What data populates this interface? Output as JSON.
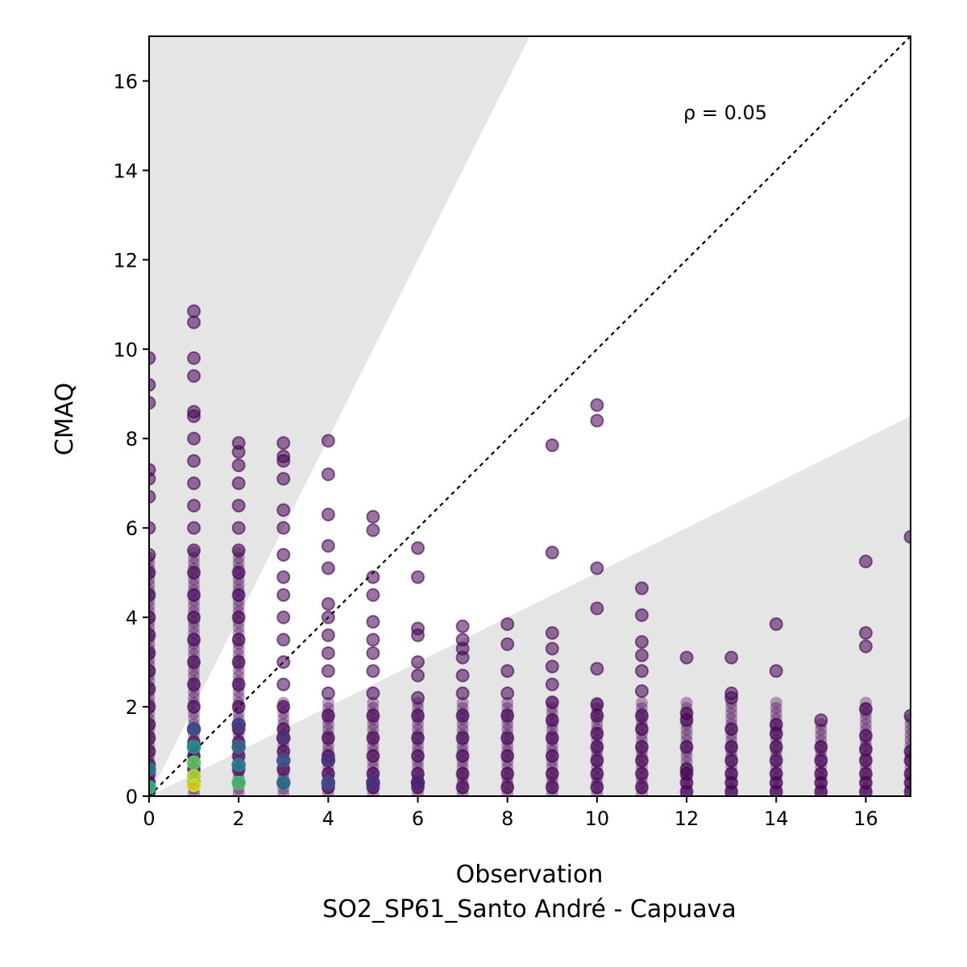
{
  "chart_data": {
    "type": "scatter",
    "xlabel": "Observation",
    "subtitle": "SO2_SP61_Santo André - Capuava",
    "ylabel": "CMAQ",
    "annotation": "ρ = 0.05",
    "xlim": [
      0,
      17
    ],
    "ylim": [
      0,
      17
    ],
    "x_ticks": [
      0,
      2,
      4,
      6,
      8,
      10,
      12,
      14,
      16
    ],
    "y_ticks": [
      0,
      2,
      4,
      6,
      8,
      10,
      12,
      14,
      16
    ],
    "grid": false,
    "identity_line": true,
    "shaded_regions": [
      {
        "description": "factor-of-2 bounds",
        "upper_slope": 2,
        "lower_slope": 0.5,
        "color": "#e5e5e5"
      }
    ],
    "colormap": "viridis",
    "columns": [
      {
        "x": 0,
        "y": [
          0.1,
          0.3,
          0.5,
          0.7,
          1.0,
          1.3,
          1.6,
          2.0,
          2.4,
          2.8,
          3.2,
          3.6,
          4.0,
          4.5,
          5.0,
          5.4,
          6.0,
          6.7,
          7.1,
          7.3,
          8.8,
          9.2,
          9.8
        ]
      },
      {
        "x": 1,
        "y": [
          0.3,
          0.6,
          0.9,
          1.2,
          1.5,
          2.0,
          2.5,
          3.0,
          3.5,
          4.0,
          4.5,
          5.0,
          5.5,
          6.0,
          6.5,
          7.0,
          7.5,
          8.0,
          8.5,
          8.6,
          9.4,
          9.8,
          10.6,
          10.85
        ]
      },
      {
        "x": 2,
        "y": [
          0.3,
          0.6,
          0.9,
          1.2,
          1.5,
          2.0,
          2.5,
          3.0,
          3.5,
          4.0,
          4.5,
          5.0,
          5.5,
          6.0,
          6.5,
          7.0,
          7.4,
          7.7,
          7.9
        ]
      },
      {
        "x": 3,
        "y": [
          0.3,
          0.6,
          1.0,
          1.5,
          2.0,
          2.5,
          3.0,
          3.5,
          4.0,
          4.5,
          4.9,
          5.4,
          6.0,
          6.4,
          7.1,
          7.5,
          7.6,
          7.9
        ]
      },
      {
        "x": 4,
        "y": [
          0.2,
          0.5,
          0.9,
          1.3,
          1.8,
          2.3,
          2.8,
          3.2,
          3.6,
          4.0,
          4.3,
          5.1,
          5.6,
          6.3,
          7.2,
          7.95
        ]
      },
      {
        "x": 5,
        "y": [
          0.2,
          0.5,
          0.9,
          1.3,
          1.8,
          2.3,
          2.8,
          3.2,
          3.5,
          3.9,
          4.5,
          4.9,
          5.95,
          6.25
        ]
      },
      {
        "x": 6,
        "y": [
          0.2,
          0.5,
          0.9,
          1.3,
          1.8,
          2.2,
          2.7,
          3.0,
          3.6,
          3.75,
          4.9,
          5.55
        ]
      },
      {
        "x": 7,
        "y": [
          0.2,
          0.5,
          0.9,
          1.3,
          1.8,
          2.3,
          2.7,
          3.1,
          3.3,
          3.5,
          3.8
        ]
      },
      {
        "x": 8,
        "y": [
          0.2,
          0.5,
          0.9,
          1.3,
          1.8,
          2.3,
          2.8,
          3.4,
          3.85
        ]
      },
      {
        "x": 9,
        "y": [
          0.2,
          0.5,
          0.9,
          1.3,
          1.7,
          2.1,
          2.5,
          2.9,
          3.3,
          3.65,
          5.45,
          7.85
        ]
      },
      {
        "x": 10,
        "y": [
          0.2,
          0.5,
          0.8,
          1.1,
          1.4,
          1.8,
          2.05,
          2.85,
          4.2,
          5.1,
          8.4,
          8.75
        ]
      },
      {
        "x": 11,
        "y": [
          0.2,
          0.5,
          0.8,
          1.1,
          1.5,
          1.8,
          2.35,
          2.8,
          3.15,
          3.45,
          4.05,
          4.65
        ]
      },
      {
        "x": 12,
        "y": [
          0.1,
          0.3,
          0.5,
          0.6,
          1.1,
          1.7,
          1.85,
          3.1
        ]
      },
      {
        "x": 13,
        "y": [
          0.1,
          0.3,
          0.5,
          0.8,
          1.1,
          1.5,
          2.2,
          2.3,
          3.1
        ]
      },
      {
        "x": 14,
        "y": [
          0.1,
          0.3,
          0.5,
          0.8,
          1.1,
          1.4,
          1.6,
          2.8,
          3.85
        ]
      },
      {
        "x": 15,
        "y": [
          0.1,
          0.3,
          0.5,
          0.8,
          1.1,
          1.7
        ]
      },
      {
        "x": 16,
        "y": [
          0.1,
          0.3,
          0.5,
          0.8,
          1.05,
          1.35,
          1.95,
          3.35,
          3.65,
          5.25
        ]
      },
      {
        "x": 17,
        "y": [
          0.1,
          0.3,
          0.5,
          0.8,
          1.0,
          1.8,
          5.8
        ]
      }
    ],
    "density_colors": [
      {
        "x": 0,
        "y": 0.2,
        "color": "#35b779"
      },
      {
        "x": 0,
        "y": 0.6,
        "color": "#2a788e"
      },
      {
        "x": 1,
        "y": 0.25,
        "color": "#d8e219"
      },
      {
        "x": 1,
        "y": 0.45,
        "color": "#b5de2b"
      },
      {
        "x": 1,
        "y": 0.75,
        "color": "#5ec962"
      },
      {
        "x": 1,
        "y": 1.1,
        "color": "#21918c"
      },
      {
        "x": 1,
        "y": 1.5,
        "color": "#3b528b"
      },
      {
        "x": 2,
        "y": 0.3,
        "color": "#4ac16d"
      },
      {
        "x": 2,
        "y": 0.7,
        "color": "#26828e"
      },
      {
        "x": 2,
        "y": 1.1,
        "color": "#31688e"
      },
      {
        "x": 2,
        "y": 1.6,
        "color": "#443983"
      },
      {
        "x": 3,
        "y": 0.3,
        "color": "#2c728e"
      },
      {
        "x": 3,
        "y": 0.8,
        "color": "#3b528b"
      },
      {
        "x": 3,
        "y": 1.3,
        "color": "#472d7b"
      },
      {
        "x": 4,
        "y": 0.3,
        "color": "#3e4a89"
      },
      {
        "x": 4,
        "y": 0.8,
        "color": "#46327e"
      },
      {
        "x": 5,
        "y": 0.3,
        "color": "#46337f"
      },
      {
        "x": 6,
        "y": 0.3,
        "color": "#482475"
      }
    ]
  }
}
